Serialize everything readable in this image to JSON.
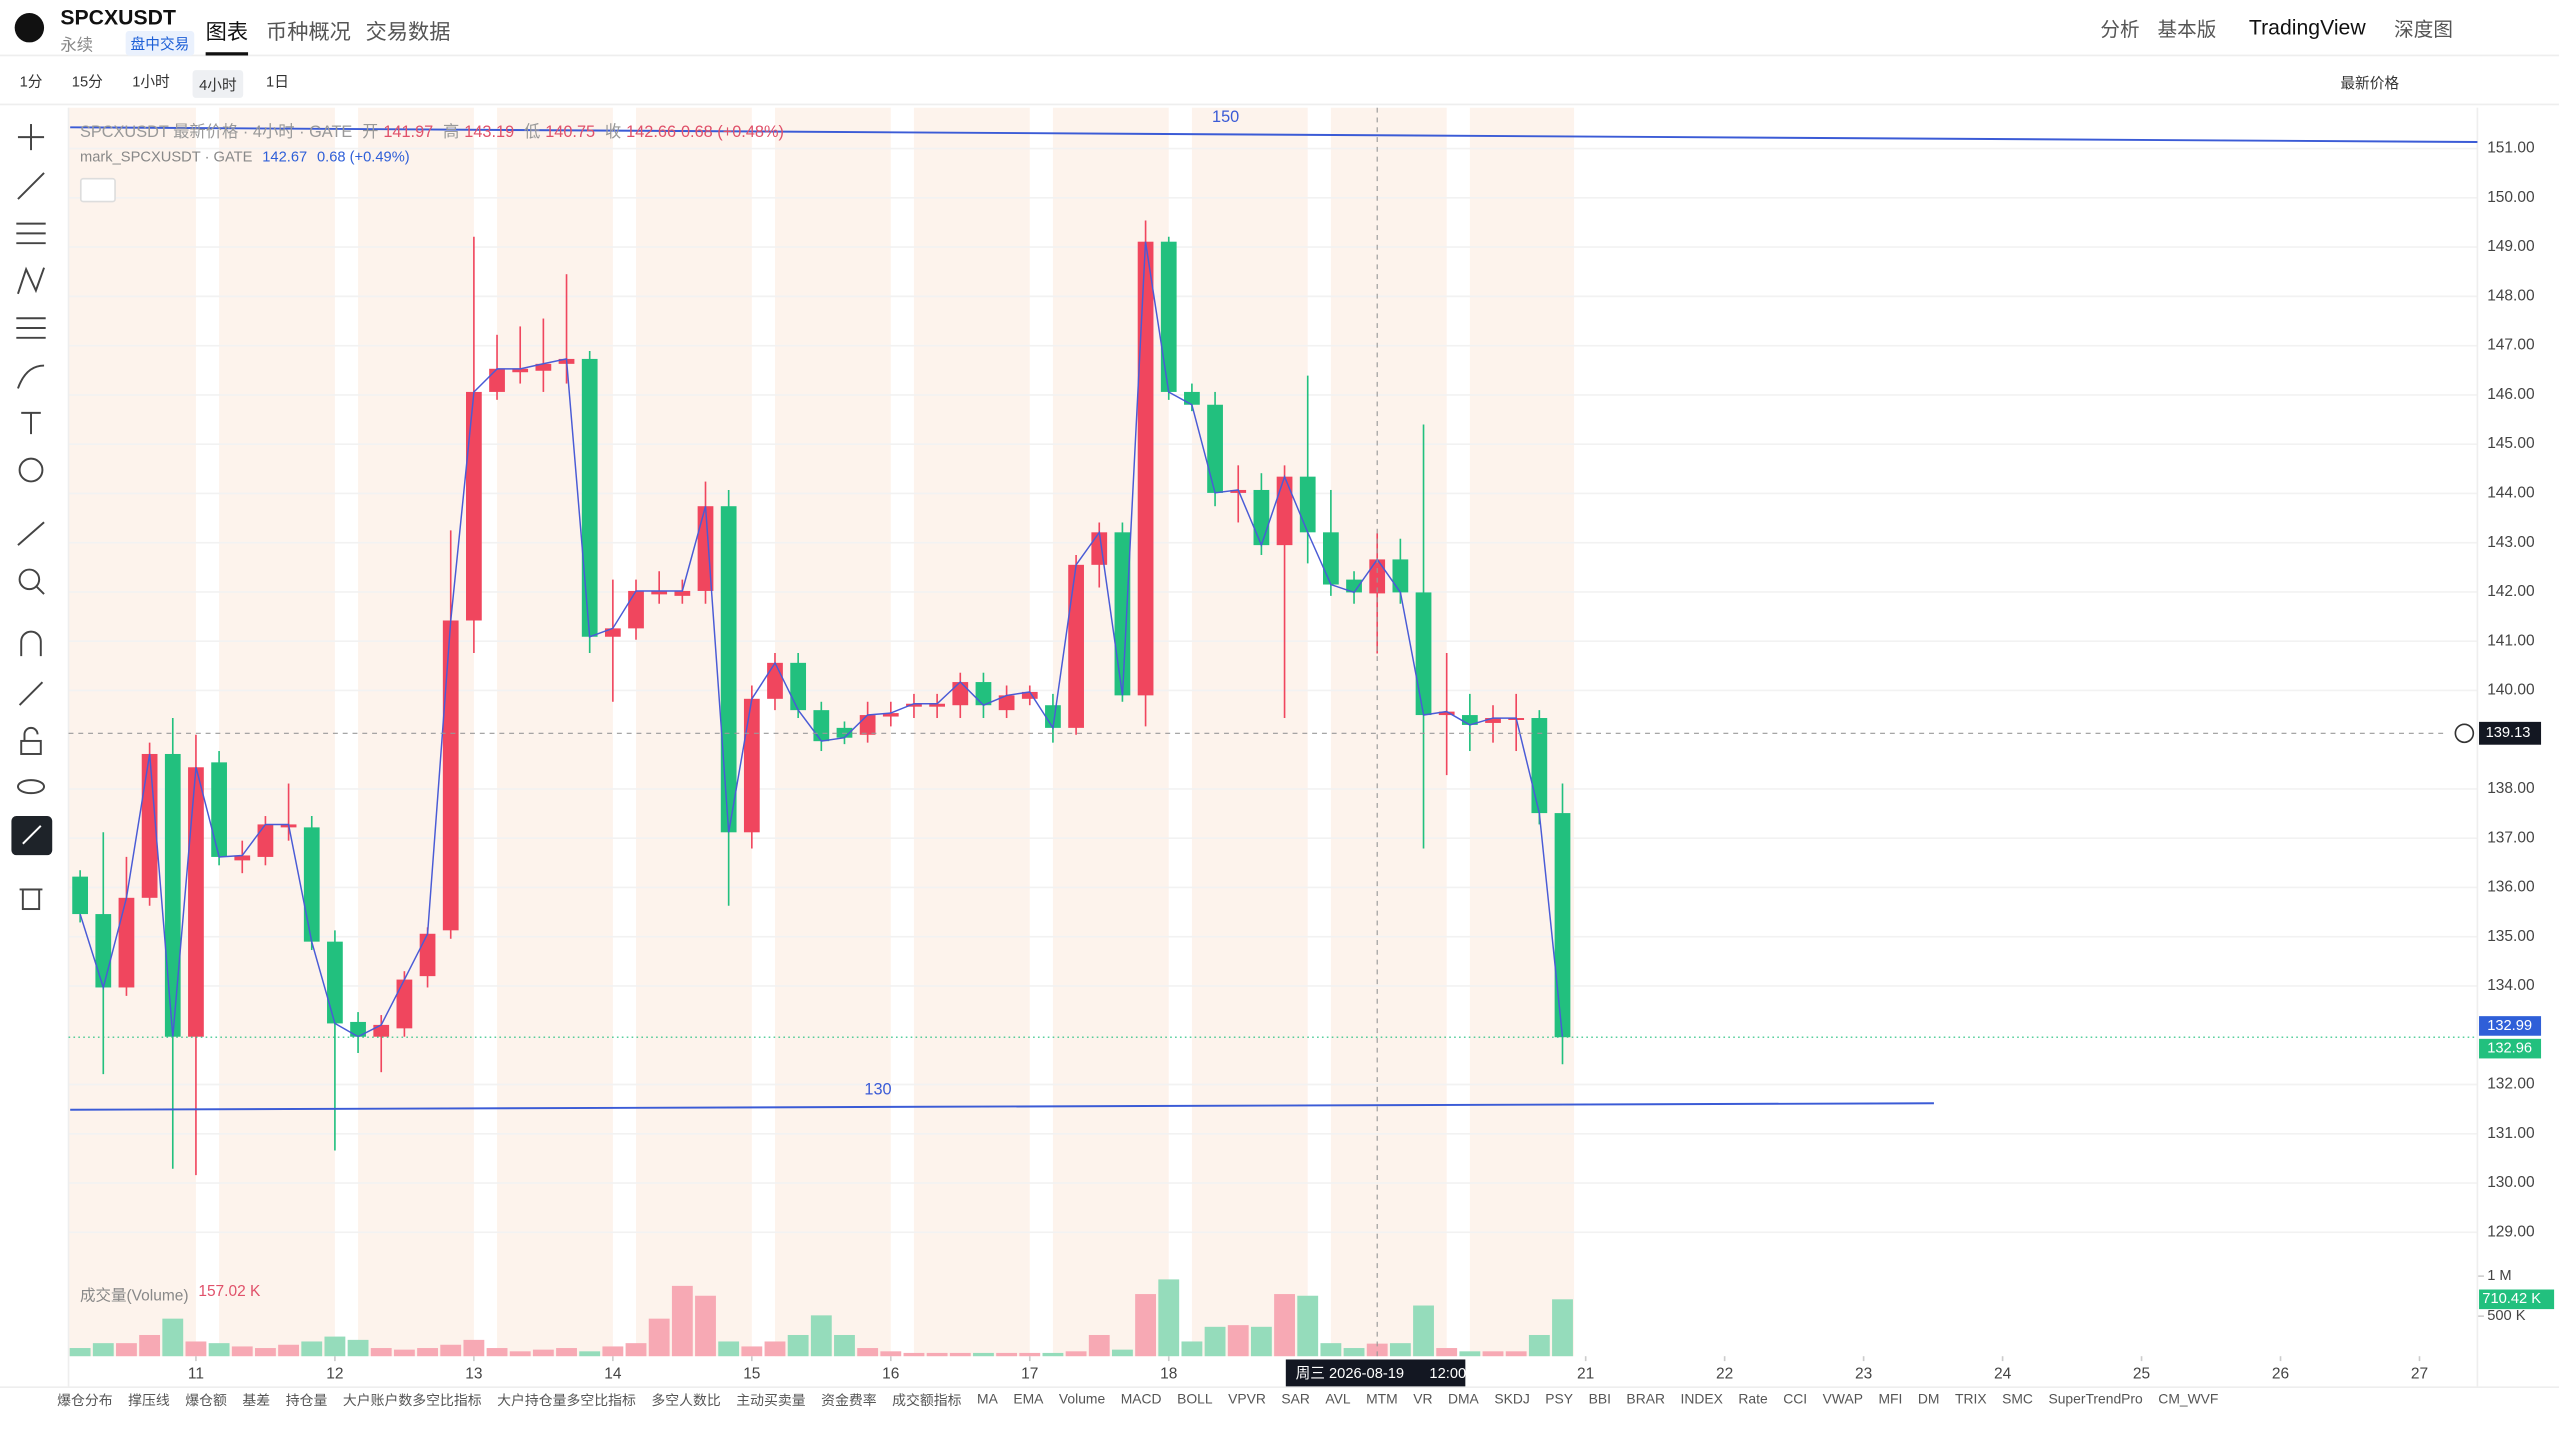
{
  "header": {
    "symbol": "SPCXUSDT",
    "contract": "永续",
    "badge": "盘中交易",
    "tabs": [
      "图表",
      "币种概况",
      "交易数据"
    ],
    "right": [
      "分析",
      "基本版",
      "TradingView",
      "深度图"
    ]
  },
  "toolbar": {
    "intervals": [
      "1分",
      "15分",
      "1小时",
      "4小时",
      "1日"
    ],
    "price_source": "最新价格"
  },
  "legend": {
    "title": "SPCXUSDT 最新价格 · 4小时 · GATE",
    "open_label": "开",
    "high_label": "高",
    "low_label": "低",
    "close_label": "收",
    "change": "0.68 (+0.48%)",
    "mark_title": "mark_SPCXUSDT · GATE",
    "mark_price": 142.67,
    "mark_change": "0.68 (+0.49%)",
    "volume_title": "成交量(Volume)",
    "volume_value": "157.02 K"
  },
  "chart_data": {
    "type": "candlestick",
    "open": [
      136.22,
      135.46,
      133.97,
      135.79,
      138.71,
      132.97,
      138.54,
      136.55,
      136.62,
      137.22,
      137.22,
      134.9,
      133.27,
      132.97,
      133.14,
      134.2,
      135.13,
      141.42,
      146.06,
      146.46,
      146.49,
      146.63,
      146.73,
      141.09,
      141.26,
      141.95,
      141.92,
      142.02,
      143.74,
      137.12,
      139.83,
      140.56,
      139.6,
      139.24,
      139.1,
      139.47,
      139.67,
      139.67,
      139.7,
      140.17,
      139.6,
      139.83,
      139.7,
      139.24,
      142.55,
      143.21,
      139.9,
      149.11,
      146.06,
      145.8,
      144.01,
      144.07,
      142.95,
      144.34,
      143.21,
      142.25,
      141.97,
      142.66,
      141.99,
      139.5,
      139.5,
      139.34,
      139.4,
      139.44,
      137.51
    ],
    "high": [
      136.35,
      137.12,
      136.62,
      138.94,
      139.44,
      139.1,
      138.77,
      136.95,
      137.45,
      138.11,
      137.45,
      135.13,
      133.47,
      133.41,
      134.3,
      135.19,
      143.25,
      149.21,
      147.22,
      147.39,
      147.55,
      148.45,
      146.89,
      142.25,
      142.25,
      142.42,
      142.25,
      144.24,
      144.07,
      140.1,
      140.76,
      140.76,
      139.77,
      139.37,
      139.77,
      139.77,
      139.93,
      139.93,
      140.36,
      140.36,
      140.1,
      140.1,
      139.93,
      142.75,
      143.41,
      143.41,
      149.54,
      149.21,
      146.23,
      146.06,
      144.57,
      144.41,
      144.57,
      146.39,
      144.07,
      142.42,
      143.19,
      143.08,
      145.4,
      140.76,
      139.93,
      139.7,
      139.93,
      139.6,
      138.11
    ],
    "low": [
      135.29,
      132.21,
      133.8,
      135.63,
      130.29,
      130.16,
      136.45,
      136.29,
      136.45,
      136.95,
      134.73,
      130.66,
      132.64,
      132.25,
      132.97,
      133.97,
      134.96,
      140.76,
      145.9,
      146.23,
      146.06,
      146.23,
      140.76,
      139.77,
      141.03,
      141.76,
      141.76,
      141.76,
      135.63,
      136.79,
      139.6,
      139.44,
      138.77,
      138.91,
      138.94,
      139.27,
      139.44,
      139.44,
      139.44,
      139.44,
      139.44,
      139.7,
      138.94,
      139.1,
      142.09,
      139.77,
      139.27,
      145.9,
      145.67,
      143.74,
      143.41,
      142.75,
      139.44,
      142.58,
      141.92,
      141.76,
      140.75,
      141.76,
      136.79,
      138.28,
      138.77,
      138.94,
      138.77,
      137.28,
      132.41
    ],
    "close": [
      135.46,
      133.97,
      135.79,
      138.71,
      132.97,
      138.44,
      136.62,
      136.65,
      137.28,
      137.28,
      134.9,
      133.24,
      132.97,
      133.21,
      134.13,
      135.06,
      141.42,
      146.06,
      146.53,
      146.53,
      146.63,
      146.73,
      141.09,
      141.26,
      142.02,
      142.02,
      142.02,
      143.74,
      137.12,
      139.83,
      140.56,
      139.6,
      138.97,
      139.04,
      139.5,
      139.54,
      139.73,
      139.73,
      140.17,
      139.7,
      139.9,
      139.97,
      139.24,
      142.55,
      143.21,
      139.9,
      149.11,
      146.06,
      145.8,
      144.01,
      144.07,
      142.95,
      144.34,
      143.21,
      142.15,
      141.99,
      142.66,
      141.99,
      139.5,
      139.57,
      139.3,
      139.44,
      139.44,
      137.51,
      132.96
    ],
    "volume": [
      102000,
      163000,
      163000,
      265000,
      469000,
      184000,
      163000,
      122000,
      102000,
      143000,
      184000,
      245000,
      204000,
      102000,
      82000,
      102000,
      143000,
      204000,
      102000,
      61000,
      82000,
      102000,
      61000,
      122000,
      163000,
      469000,
      878000,
      755000,
      184000,
      122000,
      184000,
      265000,
      510000,
      265000,
      102000,
      61000,
      41000,
      41000,
      41000,
      41000,
      41000,
      41000,
      41000,
      61000,
      265000,
      82000,
      776000,
      959000,
      184000,
      367000,
      388000,
      367000,
      776000,
      755000,
      163000,
      102000,
      157020,
      163000,
      633000,
      102000,
      61000,
      61000,
      61000,
      265000,
      710420
    ],
    "last_volume_label": "710.42 K",
    "mark_price_last": 132.99,
    "crosshair_price": 139.13,
    "crosshair_time": "周三 2026-08-19",
    "crosshair_hour": "12:00",
    "xlim": [
      -0.5,
      103.5
    ],
    "xticks": [
      {
        "value": 5,
        "label": "11"
      },
      {
        "value": 11,
        "label": "12"
      },
      {
        "value": 17,
        "label": "13"
      },
      {
        "value": 23,
        "label": "14"
      },
      {
        "value": 29,
        "label": "15"
      },
      {
        "value": 35,
        "label": "16"
      },
      {
        "value": 41,
        "label": "17"
      },
      {
        "value": 47,
        "label": "18"
      },
      {
        "value": 65,
        "label": "21"
      },
      {
        "value": 71,
        "label": "22"
      },
      {
        "value": 77,
        "label": "23"
      },
      {
        "value": 83,
        "label": "24"
      },
      {
        "value": 89,
        "label": "25"
      },
      {
        "value": 95,
        "label": "26"
      },
      {
        "value": 101,
        "label": "27"
      }
    ],
    "ylim": [
      128.24,
      151.83
    ],
    "yticks": [
      {
        "value": 151,
        "label": "151.00"
      },
      {
        "value": 150,
        "label": "150.00"
      },
      {
        "value": 149,
        "label": "149.00"
      },
      {
        "value": 148,
        "label": "148.00"
      },
      {
        "value": 147,
        "label": "147.00"
      },
      {
        "value": 146,
        "label": "146.00"
      },
      {
        "value": 145,
        "label": "145.00"
      },
      {
        "value": 144,
        "label": "144.00"
      },
      {
        "value": 143,
        "label": "143.00"
      },
      {
        "value": 142,
        "label": "142.00"
      },
      {
        "value": 141,
        "label": "141.00"
      },
      {
        "value": 140,
        "label": "140.00"
      },
      {
        "value": 138,
        "label": "138.00"
      },
      {
        "value": 137,
        "label": "137.00"
      },
      {
        "value": 136,
        "label": "136.00"
      },
      {
        "value": 135,
        "label": "135.00"
      },
      {
        "value": 134,
        "label": "134.00"
      },
      {
        "value": 132,
        "label": "132.00"
      },
      {
        "value": 131,
        "label": "131.00"
      },
      {
        "value": 130,
        "label": "130.00"
      },
      {
        "value": 129,
        "label": "129.00"
      }
    ],
    "vlim": [
      0,
      1080000
    ],
    "vticks": [
      {
        "value": 1000000,
        "label": "1 M"
      },
      {
        "value": 500000,
        "label": "500 K"
      }
    ],
    "annotations": [
      "150",
      "130"
    ],
    "up_color": "#f0465e",
    "down_color": "#22c07e",
    "volume_up_color": "#f7a9b4",
    "volume_down_color": "#95dcbb",
    "mark_line_color": "#4a5bd6",
    "grid": true
  },
  "indicators": [
    "爆仓分布",
    "撑压线",
    "爆仓额",
    "基差",
    "持仓量",
    "大户账户数多空比指标",
    "大户持仓量多空比指标",
    "多空人数比",
    "主动买卖量",
    "资金费率",
    "成交额指标",
    "MA",
    "EMA",
    "Volume",
    "MACD",
    "BOLL",
    "VPVR",
    "SAR",
    "AVL",
    "MTM",
    "VR",
    "DMA",
    "SKDJ",
    "PSY",
    "BBI",
    "BRAR",
    "INDEX",
    "Rate",
    "CCI",
    "VWAP",
    "MFI",
    "DM",
    "TRIX",
    "SMC",
    "SuperTrendPro",
    "CM_WVF"
  ]
}
